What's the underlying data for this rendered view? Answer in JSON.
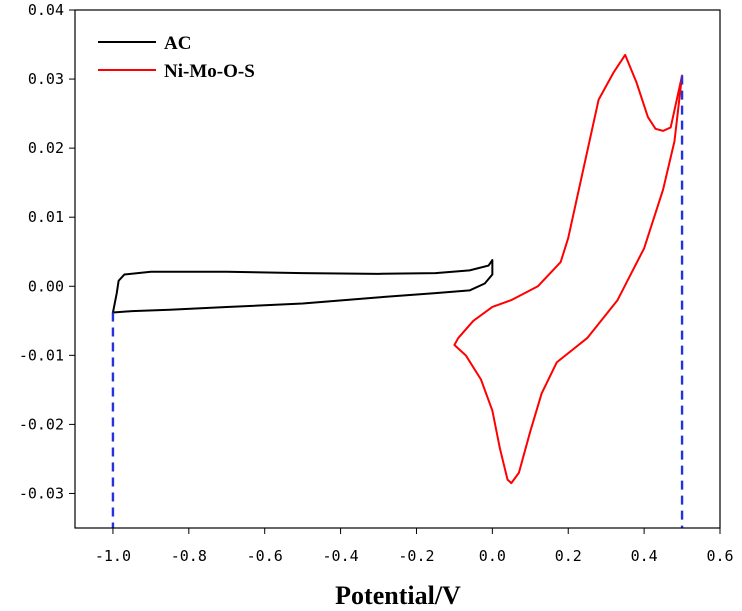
{
  "chart_data": {
    "type": "line",
    "title": "",
    "xlabel": "Potential/V",
    "ylabel": "",
    "xlim": [
      -1.1,
      0.6
    ],
    "ylim": [
      -0.035,
      0.04
    ],
    "x_ticks": [
      -1.0,
      -0.8,
      -0.6,
      -0.4,
      -0.2,
      0.0,
      0.2,
      0.4,
      0.6
    ],
    "x_tick_labels": [
      "-1.0",
      "-0.8",
      "-0.6",
      "-0.4",
      "-0.2",
      "0.0",
      "0.2",
      "0.4",
      "0.6"
    ],
    "y_ticks": [
      0.04,
      0.03,
      0.02,
      0.01,
      0.0,
      -0.01,
      -0.02,
      -0.03
    ],
    "y_tick_labels": [
      "0.04",
      "0.03",
      "0.02",
      "0.01",
      "0.00",
      "-0.01",
      "-0.02",
      "-0.03"
    ],
    "grid": false,
    "legend_position": "top-left",
    "series": [
      {
        "name": "AC",
        "color": "#000000",
        "points": [
          [
            -1.0,
            -0.0038
          ],
          [
            -0.99,
            -0.001
          ],
          [
            -0.985,
            0.0008
          ],
          [
            -0.97,
            0.0017
          ],
          [
            -0.9,
            0.0021
          ],
          [
            -0.7,
            0.0021
          ],
          [
            -0.5,
            0.0019
          ],
          [
            -0.3,
            0.0018
          ],
          [
            -0.15,
            0.0019
          ],
          [
            -0.06,
            0.0023
          ],
          [
            -0.01,
            0.003
          ],
          [
            0.0,
            0.0038
          ],
          [
            0.0,
            0.0017
          ],
          [
            -0.02,
            0.0004
          ],
          [
            -0.06,
            -0.0006
          ],
          [
            -0.15,
            -0.001
          ],
          [
            -0.3,
            -0.0016
          ],
          [
            -0.5,
            -0.0025
          ],
          [
            -0.7,
            -0.003
          ],
          [
            -0.85,
            -0.0034
          ],
          [
            -0.95,
            -0.0036
          ],
          [
            -1.0,
            -0.0038
          ]
        ]
      },
      {
        "name": "Ni-Mo-O-S",
        "color": "#ff0000",
        "points": [
          [
            0.5,
            0.0305
          ],
          [
            0.47,
            0.023
          ],
          [
            0.45,
            0.0225
          ],
          [
            0.43,
            0.0228
          ],
          [
            0.41,
            0.0245
          ],
          [
            0.38,
            0.0295
          ],
          [
            0.35,
            0.0335
          ],
          [
            0.32,
            0.031
          ],
          [
            0.28,
            0.027
          ],
          [
            0.22,
            0.012
          ],
          [
            0.2,
            0.007
          ],
          [
            0.18,
            0.0035
          ],
          [
            0.12,
            0.0
          ],
          [
            0.05,
            -0.002
          ],
          [
            0.0,
            -0.003
          ],
          [
            -0.05,
            -0.005
          ],
          [
            -0.09,
            -0.0075
          ],
          [
            -0.1,
            -0.0085
          ],
          [
            -0.07,
            -0.01
          ],
          [
            -0.03,
            -0.0135
          ],
          [
            0.0,
            -0.018
          ],
          [
            0.02,
            -0.0235
          ],
          [
            0.04,
            -0.028
          ],
          [
            0.05,
            -0.0285
          ],
          [
            0.07,
            -0.027
          ],
          [
            0.1,
            -0.021
          ],
          [
            0.13,
            -0.0155
          ],
          [
            0.17,
            -0.011
          ],
          [
            0.25,
            -0.0075
          ],
          [
            0.33,
            -0.002
          ],
          [
            0.4,
            0.0055
          ],
          [
            0.45,
            0.014
          ],
          [
            0.48,
            0.021
          ],
          [
            0.5,
            0.0305
          ]
        ]
      },
      {
        "name": "",
        "color": "#2233dd",
        "style": "dashed",
        "points": [
          [
            -1.0,
            -0.0038
          ],
          [
            -1.0,
            -0.035
          ]
        ]
      },
      {
        "name": "",
        "color": "#2233dd",
        "style": "dashed",
        "points": [
          [
            0.5,
            0.0305
          ],
          [
            0.5,
            -0.035
          ]
        ]
      }
    ]
  }
}
